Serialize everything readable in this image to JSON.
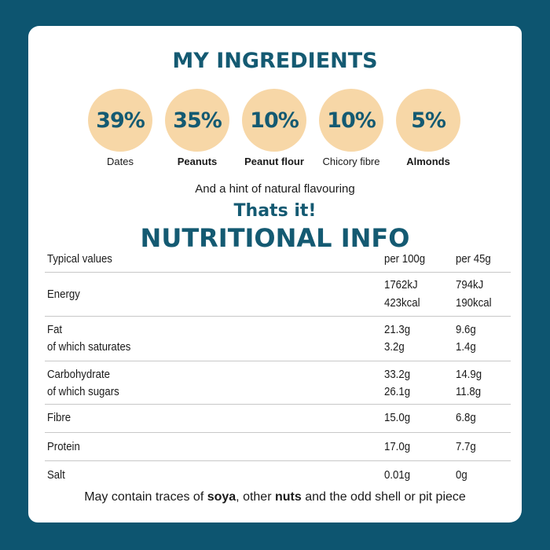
{
  "ingredients_title": "MY INGREDIENTS",
  "ingredients": [
    {
      "percent": "39%",
      "name": "Dates"
    },
    {
      "percent": "35%",
      "name": "Peanuts"
    },
    {
      "percent": "10%",
      "name": "Peanut flour"
    },
    {
      "percent": "10%",
      "name": "Chicory fibre"
    },
    {
      "percent": "5%",
      "name": "Almonds"
    }
  ],
  "hint": "And a hint of natural flavouring",
  "thats_it": "Thats it!",
  "nutrition_title": "NUTRITIONAL INFO",
  "table": {
    "headers": [
      "Typical values",
      "per 100g",
      "per 45g"
    ],
    "rows": [
      {
        "label": [
          "Energy"
        ],
        "per100": [
          "1762kJ",
          "423kcal"
        ],
        "per45": [
          "794kJ",
          "190kcal"
        ]
      },
      {
        "label": [
          "Fat",
          "of which saturates"
        ],
        "per100": [
          "21.3g",
          "3.2g"
        ],
        "per45": [
          "9.6g",
          "1.4g"
        ]
      },
      {
        "label": [
          "Carbohydrate",
          "of which sugars"
        ],
        "per100": [
          "33.2g",
          "26.1g"
        ],
        "per45": [
          "14.9g",
          "11.8g"
        ]
      },
      {
        "label": [
          "Fibre"
        ],
        "per100": [
          "15.0g"
        ],
        "per45": [
          "6.8g"
        ]
      },
      {
        "label": [
          "Protein"
        ],
        "per100": [
          "17.0g"
        ],
        "per45": [
          "7.7g"
        ]
      },
      {
        "label": [
          "Salt"
        ],
        "per100": [
          "0.01g"
        ],
        "per45": [
          "0g"
        ]
      }
    ]
  },
  "footer": {
    "p1": "May contain traces of ",
    "b1": "soya",
    "p2": ", other ",
    "b2": "nuts",
    "p3": " and the odd shell or pit piece"
  },
  "colors": {
    "background": "#0d5570",
    "accent": "#145a72",
    "circle": "#f7d7a7"
  }
}
